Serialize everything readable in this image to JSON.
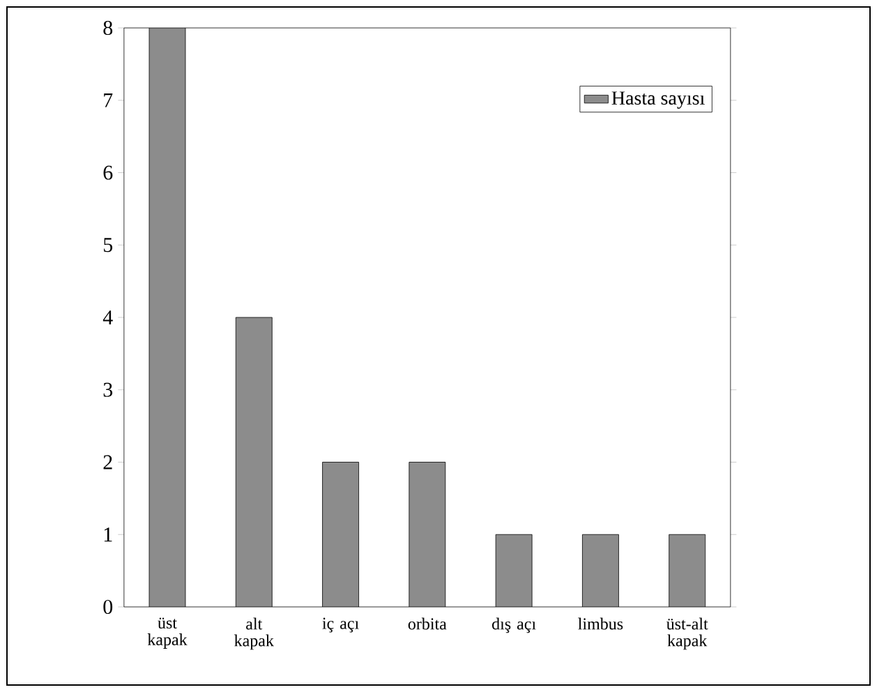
{
  "chart_data": {
    "type": "bar",
    "categories": [
      "üst kapak",
      "alt kapak",
      "iç açı",
      "orbita",
      "dış açı",
      "limbus",
      "üst-alt kapak"
    ],
    "series": [
      {
        "name": "Hasta sayısı",
        "color": "#8c8c8c",
        "values": [
          8,
          4,
          2,
          2,
          1,
          1,
          1
        ]
      }
    ],
    "ylim": [
      0,
      8
    ],
    "yticks": [
      0,
      1,
      2,
      3,
      4,
      5,
      6,
      7,
      8
    ],
    "legend": "top right"
  }
}
